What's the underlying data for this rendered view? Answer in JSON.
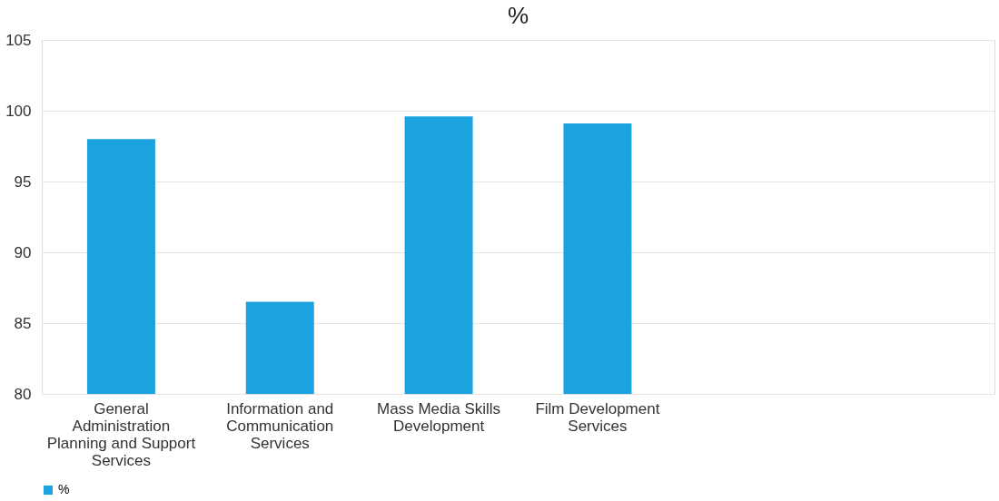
{
  "chart_data": {
    "type": "bar",
    "title": "%",
    "categories": [
      "General Administration Planning and Support Services",
      "Information and Communication Services",
      "Mass Media Skills Development",
      "Film Development Services",
      null,
      null
    ],
    "series": [
      {
        "name": "%",
        "color": "#1ba3e0",
        "values": [
          98.0,
          86.5,
          99.6,
          99.1,
          null,
          null
        ]
      }
    ],
    "ylim": [
      80,
      105
    ],
    "yticks": [
      80,
      85,
      90,
      95,
      100,
      105
    ],
    "grid": "y",
    "legend": "bottom"
  }
}
